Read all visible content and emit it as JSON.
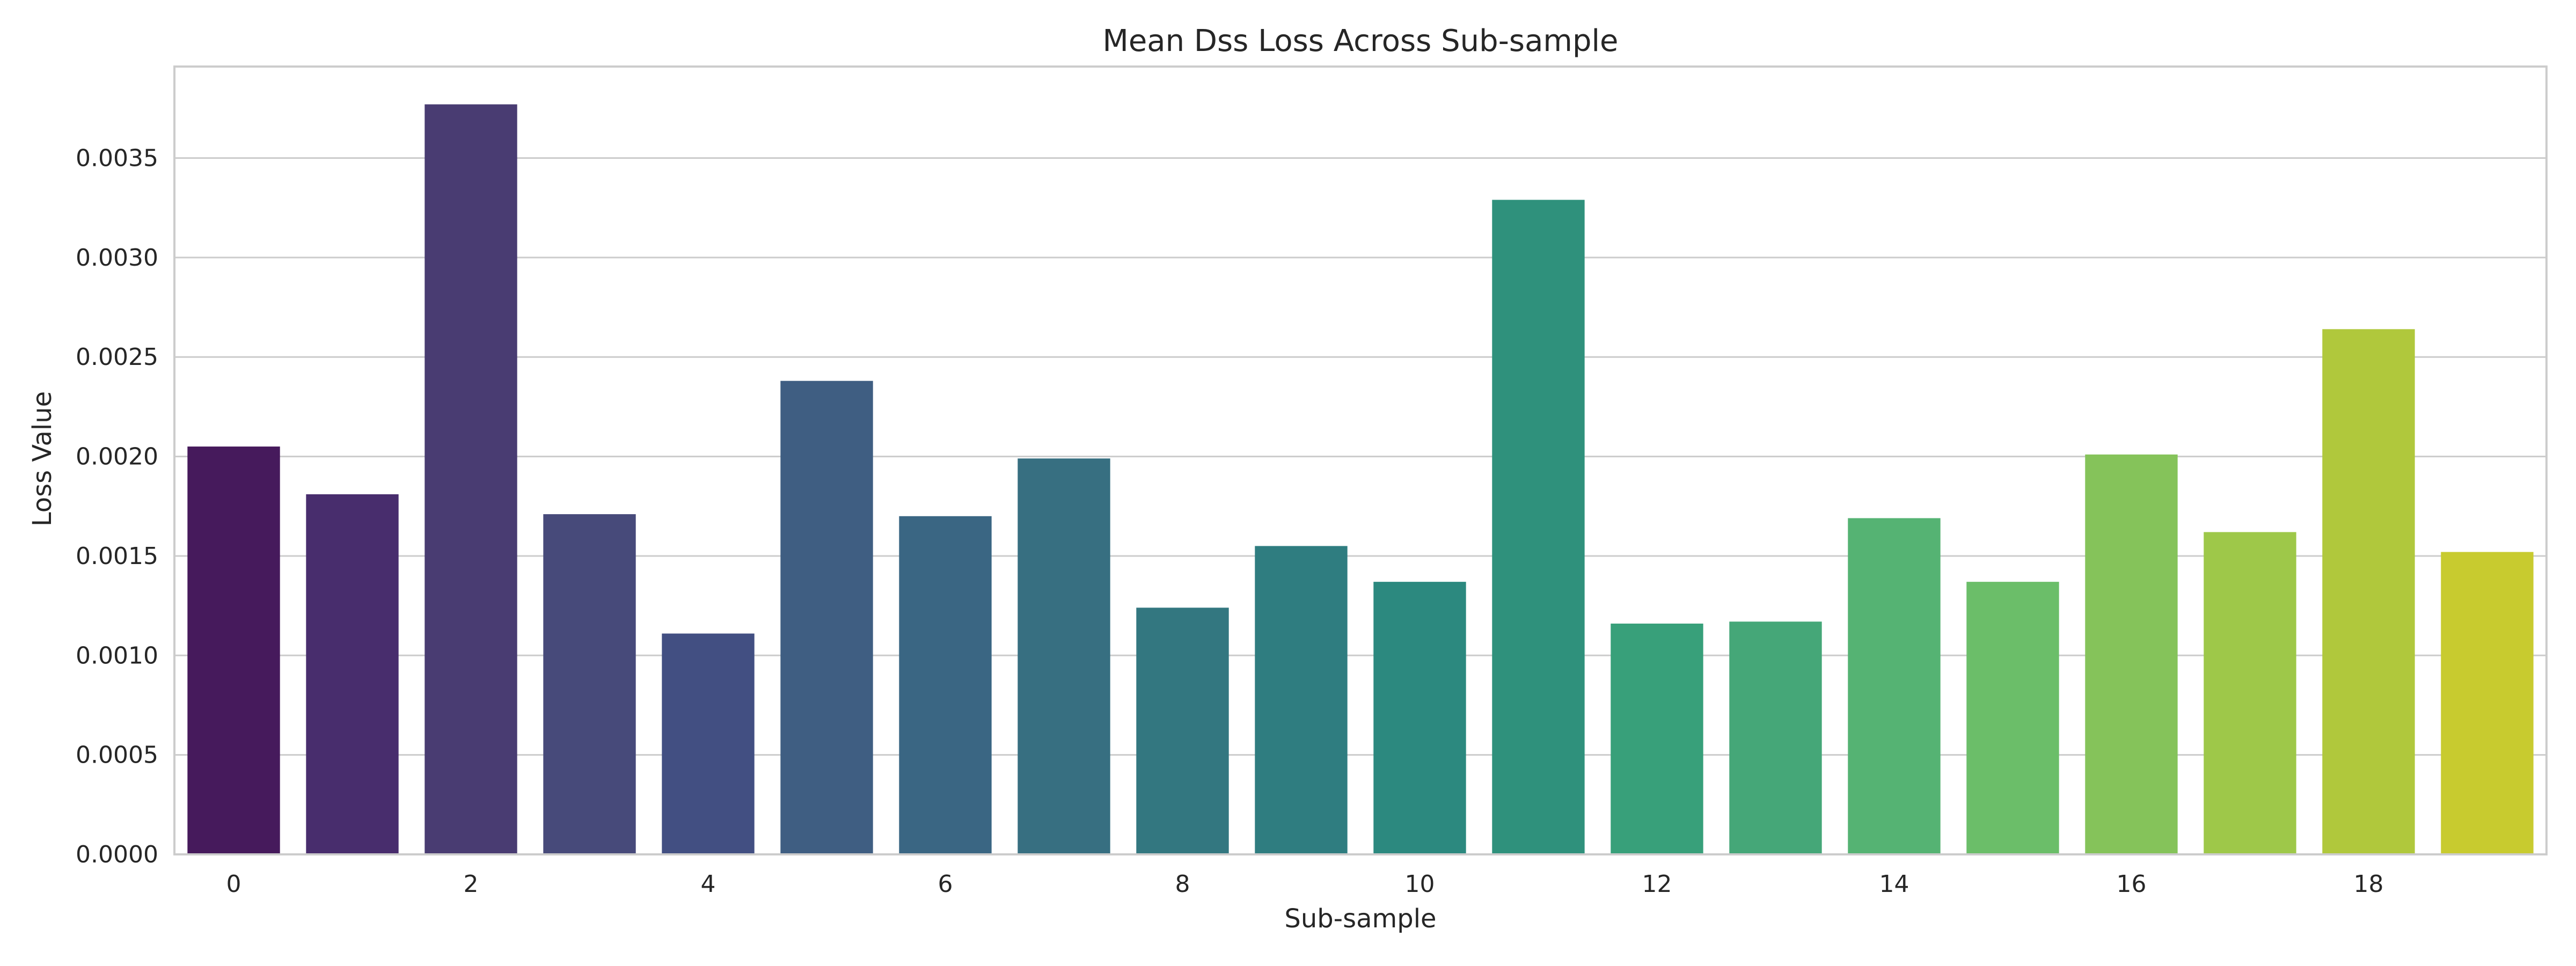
{
  "chart_data": {
    "type": "bar",
    "title": "Mean Dss Loss Across Sub-sample",
    "xlabel": "Sub-sample",
    "ylabel": "Loss Value",
    "categories": [
      "0",
      "1",
      "2",
      "3",
      "4",
      "5",
      "6",
      "7",
      "8",
      "9",
      "10",
      "11",
      "12",
      "13",
      "14",
      "15",
      "16",
      "17",
      "18",
      "19"
    ],
    "values": [
      0.00205,
      0.00181,
      0.00377,
      0.00171,
      0.00111,
      0.00238,
      0.0017,
      0.00199,
      0.00124,
      0.00155,
      0.00137,
      0.00329,
      0.00116,
      0.00117,
      0.00169,
      0.00137,
      0.00201,
      0.00162,
      0.00264,
      0.00152
    ],
    "colors": [
      "#461a5c",
      "#482d6d",
      "#493c72",
      "#474a7a",
      "#424f82",
      "#3f5e82",
      "#3a6683",
      "#376f81",
      "#337780",
      "#2f7d80",
      "#2c897f",
      "#2f917c",
      "#38a07a",
      "#45a778",
      "#55b373",
      "#6bbe69",
      "#85c35a",
      "#9ec849",
      "#b0c83c",
      "#c8cb2f"
    ],
    "x_tick_labels": [
      "0",
      "2",
      "4",
      "6",
      "8",
      "10",
      "12",
      "14",
      "16",
      "18"
    ],
    "y_ticks": [
      0,
      0.0005,
      0.001,
      0.0015,
      0.002,
      0.0025,
      0.003,
      0.0035
    ],
    "y_tick_labels": [
      "0.0000",
      "0.0005",
      "0.0010",
      "0.0015",
      "0.0020",
      "0.0025",
      "0.0030",
      "0.0035"
    ],
    "ylim": [
      0,
      0.00396
    ],
    "grid": true,
    "legend": "none"
  }
}
